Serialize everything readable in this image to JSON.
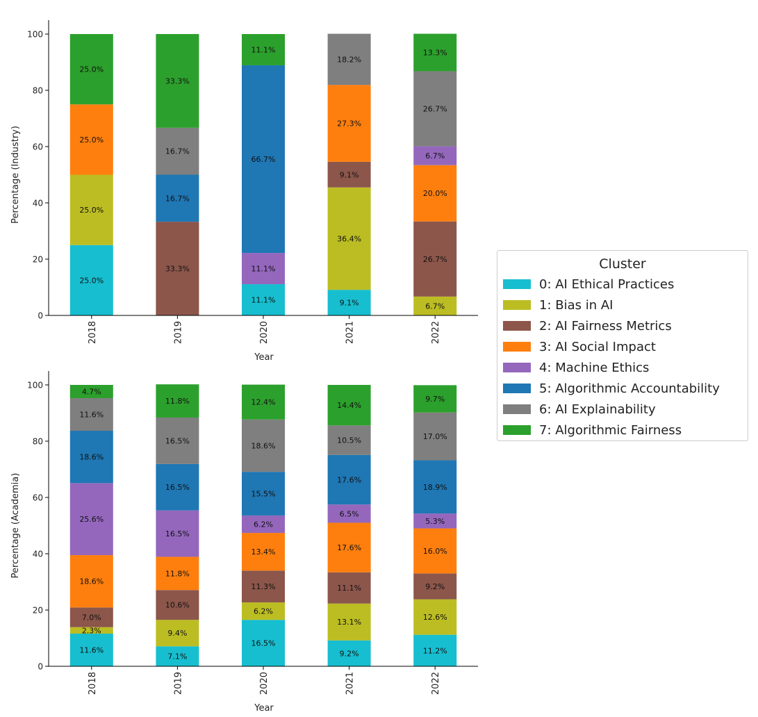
{
  "chart_data": [
    {
      "type": "stacked-bar",
      "ylabel": "Percentage (Industry)",
      "xlabel": "Year",
      "ylim": [
        0,
        100
      ],
      "yticks": [
        "0",
        "20",
        "40",
        "60",
        "80",
        "100"
      ],
      "categories": [
        "2018",
        "2019",
        "2020",
        "2021",
        "2022"
      ],
      "series": [
        {
          "name": "0: AI Ethical Practices",
          "values": [
            25.0,
            0,
            11.1,
            9.1,
            0
          ],
          "labels": [
            "25.0%",
            "",
            "11.1%",
            "9.1%",
            ""
          ]
        },
        {
          "name": "1: Bias in AI",
          "values": [
            25.0,
            0,
            0,
            36.4,
            6.7
          ],
          "labels": [
            "25.0%",
            "",
            "",
            "36.4%",
            "6.7%"
          ]
        },
        {
          "name": "2: AI Fairness Metrics",
          "values": [
            0,
            33.3,
            0,
            9.1,
            26.7
          ],
          "labels": [
            "",
            "33.3%",
            "",
            "9.1%",
            "26.7%"
          ]
        },
        {
          "name": "3: AI Social Impact",
          "values": [
            25.0,
            0,
            0,
            27.3,
            20.0
          ],
          "labels": [
            "25.0%",
            "",
            "",
            "27.3%",
            "20.0%"
          ]
        },
        {
          "name": "4: Machine Ethics",
          "values": [
            0,
            0,
            11.1,
            0,
            6.7
          ],
          "labels": [
            "",
            "",
            "11.1%",
            "",
            "6.7%"
          ]
        },
        {
          "name": "5: Algorithmic Accountability",
          "values": [
            0,
            16.7,
            66.7,
            0,
            0
          ],
          "labels": [
            "",
            "16.7%",
            "66.7%",
            "",
            ""
          ]
        },
        {
          "name": "6: AI Explainability",
          "values": [
            0,
            16.7,
            0,
            18.2,
            26.7
          ],
          "labels": [
            "",
            "16.7%",
            "",
            "18.2%",
            "26.7%"
          ]
        },
        {
          "name": "7: Algorithmic Fairness",
          "values": [
            25.0,
            33.3,
            11.1,
            0,
            13.3
          ],
          "labels": [
            "25.0%",
            "33.3%",
            "11.1%",
            "",
            "13.3%"
          ]
        }
      ]
    },
    {
      "type": "stacked-bar",
      "ylabel": "Percentage (Academia)",
      "xlabel": "Year",
      "ylim": [
        0,
        100
      ],
      "yticks": [
        "0",
        "20",
        "40",
        "60",
        "80",
        "100"
      ],
      "categories": [
        "2018",
        "2019",
        "2020",
        "2021",
        "2022"
      ],
      "series": [
        {
          "name": "0: AI Ethical Practices",
          "values": [
            11.6,
            7.1,
            16.5,
            9.2,
            11.2
          ],
          "labels": [
            "11.6%",
            "7.1%",
            "16.5%",
            "9.2%",
            "11.2%"
          ]
        },
        {
          "name": "1: Bias in AI",
          "values": [
            2.3,
            9.4,
            6.2,
            13.1,
            12.6
          ],
          "labels": [
            "2.3%",
            "9.4%",
            "6.2%",
            "13.1%",
            "12.6%"
          ]
        },
        {
          "name": "2: AI Fairness Metrics",
          "values": [
            7.0,
            10.6,
            11.3,
            11.1,
            9.2
          ],
          "labels": [
            "7.0%",
            "10.6%",
            "11.3%",
            "11.1%",
            "9.2%"
          ]
        },
        {
          "name": "3: AI Social Impact",
          "values": [
            18.6,
            11.8,
            13.4,
            17.6,
            16.0
          ],
          "labels": [
            "18.6%",
            "11.8%",
            "13.4%",
            "17.6%",
            "16.0%"
          ]
        },
        {
          "name": "4: Machine Ethics",
          "values": [
            25.6,
            16.5,
            6.2,
            6.5,
            5.3
          ],
          "labels": [
            "25.6%",
            "16.5%",
            "6.2%",
            "6.5%",
            "5.3%"
          ]
        },
        {
          "name": "5: Algorithmic Accountability",
          "values": [
            18.6,
            16.5,
            15.5,
            17.6,
            18.9
          ],
          "labels": [
            "18.6%",
            "16.5%",
            "15.5%",
            "17.6%",
            "18.9%"
          ]
        },
        {
          "name": "6: AI Explainability",
          "values": [
            11.6,
            16.5,
            18.6,
            10.5,
            17.0
          ],
          "labels": [
            "11.6%",
            "16.5%",
            "18.6%",
            "10.5%",
            "17.0%"
          ]
        },
        {
          "name": "7: Algorithmic Fairness",
          "values": [
            4.7,
            11.8,
            12.4,
            14.4,
            9.7
          ],
          "labels": [
            "4.7%",
            "11.8%",
            "12.4%",
            "14.4%",
            "9.7%"
          ]
        }
      ]
    }
  ],
  "legend": {
    "title": "Cluster",
    "items": [
      {
        "label": "0: AI Ethical Practices",
        "color": "#17becf"
      },
      {
        "label": "1: Bias in AI",
        "color": "#bcbd22"
      },
      {
        "label": "2: AI Fairness Metrics",
        "color": "#8c564b"
      },
      {
        "label": "3: AI Social Impact",
        "color": "#ff7f0e"
      },
      {
        "label": "4: Machine Ethics",
        "color": "#9467bd"
      },
      {
        "label": "5: Algorithmic Accountability",
        "color": "#1f77b4"
      },
      {
        "label": "6: AI Explainability",
        "color": "#7f7f7f"
      },
      {
        "label": "7: Algorithmic Fairness",
        "color": "#2ca02c"
      }
    ]
  }
}
